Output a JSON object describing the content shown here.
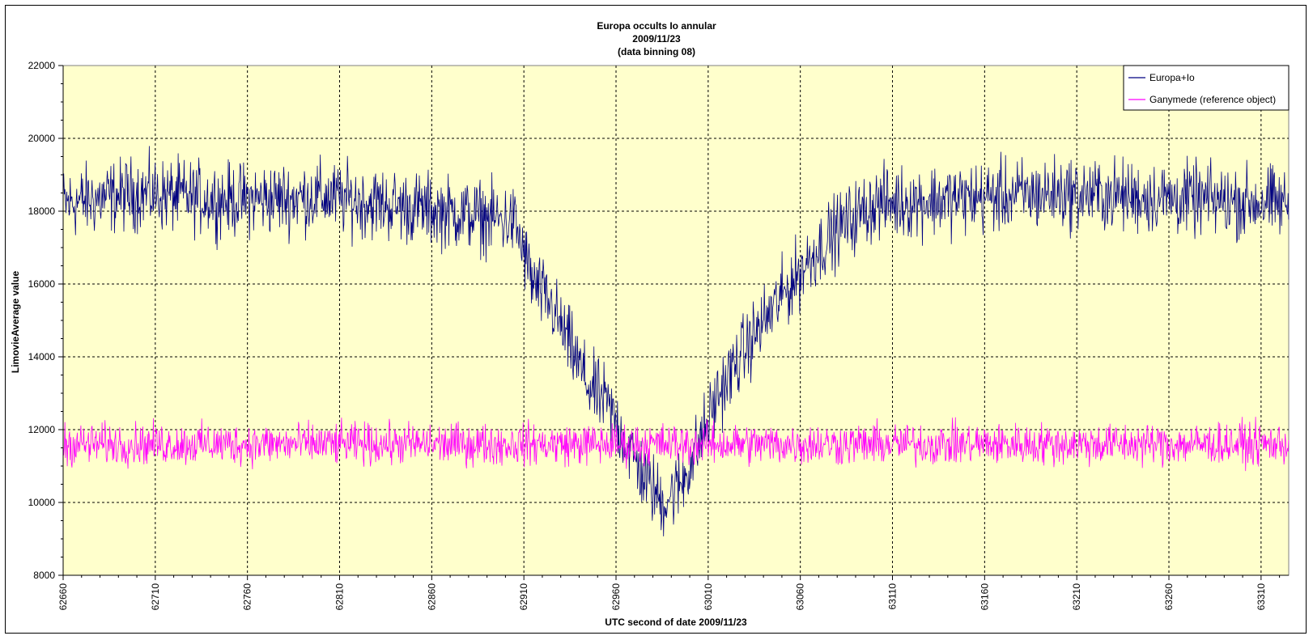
{
  "chart_data": {
    "type": "line",
    "title_lines": [
      "Europa occults Io annular",
      "2009/11/23",
      "(data binning 08)"
    ],
    "xlabel": "UTC second  of date 2009/11/23",
    "ylabel": "LimovieAverage value",
    "xlim": [
      62660,
      63325
    ],
    "ylim": [
      8000,
      22000
    ],
    "x_ticks": [
      62660,
      62710,
      62760,
      62810,
      62860,
      62910,
      62960,
      63010,
      63060,
      63110,
      63160,
      63210,
      63260,
      63310
    ],
    "y_ticks": [
      8000,
      10000,
      12000,
      14000,
      16000,
      18000,
      20000,
      22000
    ],
    "grid": true,
    "legend_position": "top-right",
    "plot_background": "#ffffcc",
    "series": [
      {
        "name": "Europa+Io",
        "color": "#000080",
        "baseline_x": [
          62660,
          62700,
          62750,
          62800,
          62850,
          62880,
          62905,
          62915,
          62925,
          62935,
          62945,
          62955,
          62965,
          62975,
          62985,
          62995,
          63005,
          63015,
          63025,
          63035,
          63045,
          63055,
          63065,
          63080,
          63100,
          63130,
          63200,
          63325
        ],
        "baseline_y": [
          18200,
          18500,
          18300,
          18400,
          18100,
          17900,
          17700,
          16000,
          15400,
          14300,
          13200,
          12700,
          11700,
          10700,
          10000,
          10500,
          11600,
          12900,
          13800,
          14600,
          15300,
          16000,
          16700,
          17500,
          18200,
          18300,
          18500,
          18200
        ],
        "noise_amplitude": 1050
      },
      {
        "name": "Ganymede (reference object)",
        "color": "#ff00ff",
        "baseline_x": [
          62660,
          63325
        ],
        "baseline_y": [
          11600,
          11600
        ],
        "noise_amplitude": 600
      }
    ]
  }
}
